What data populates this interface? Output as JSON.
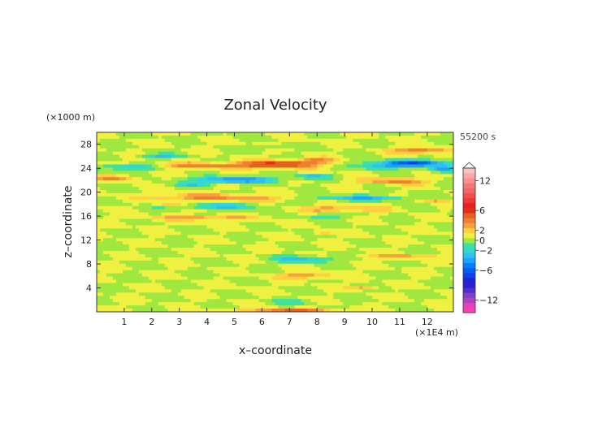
{
  "chart_data": {
    "type": "heatmap",
    "title": "Zonal Velocity",
    "xlabel": "x–coordinate",
    "ylabel": "z–coordinate",
    "x_unit": "(×1E4 m)",
    "y_unit": "(×1000 m)",
    "time_label": "55200 s",
    "xlim": [
      0,
      12.95
    ],
    "ylim": [
      0,
      30
    ],
    "x_ticks": [
      1,
      2,
      3,
      4,
      5,
      6,
      7,
      8,
      9,
      10,
      11,
      12
    ],
    "y_ticks": [
      4,
      8,
      12,
      16,
      20,
      24,
      28
    ],
    "background_value": 0.5,
    "colorbar": {
      "levels": [
        -14,
        -13,
        -12,
        -11,
        -10,
        -9,
        -8,
        -7,
        -6,
        -5,
        -4,
        -3,
        -2,
        -1,
        0,
        1,
        2,
        3,
        4,
        5,
        6,
        7,
        8,
        9,
        10,
        11,
        12,
        13,
        14
      ],
      "tick_labels": [
        "12",
        "6",
        "2",
        "0",
        "−2",
        "−6",
        "−12"
      ],
      "tick_values": [
        12,
        6,
        2,
        0,
        -2,
        -6,
        -12
      ],
      "colors": {
        "-14": "#ff3fb4",
        "-13": "#e840b8",
        "-12": "#b040c0",
        "-11": "#8040c8",
        "-10": "#5030c8",
        "-9": "#3020c8",
        "-8": "#2020d8",
        "-7": "#1040e8",
        "-6": "#0060f0",
        "-5": "#0080ff",
        "-4": "#20a0ff",
        "-3": "#30c0f0",
        "-2": "#30d8d8",
        "-1": "#40e0a0",
        "0": "#a0e840",
        "1": "#f0f040",
        "2": "#ffd040",
        "3": "#f8a040",
        "4": "#f08030",
        "5": "#e86020",
        "6": "#e03018",
        "7": "#e82020",
        "8": "#f03838",
        "9": "#f05050",
        "10": "#f06868",
        "11": "#f07878",
        "12": "#f89090",
        "13": "#f8a8a8",
        "14": "#fbc0c0"
      }
    },
    "anomalies": [
      {
        "x": 1.2,
        "z": 24.2,
        "sx": 1.1,
        "sz": 0.45,
        "v": -4.5
      },
      {
        "x": 2.3,
        "z": 26.0,
        "sx": 0.8,
        "sz": 0.35,
        "v": -3.2
      },
      {
        "x": 5.0,
        "z": 22.0,
        "sx": 1.5,
        "sz": 0.5,
        "v": -5.5
      },
      {
        "x": 7.8,
        "z": 22.6,
        "sx": 0.6,
        "sz": 0.35,
        "v": -4.0
      },
      {
        "x": 4.5,
        "z": 17.6,
        "sx": 1.6,
        "sz": 0.45,
        "v": -3.2
      },
      {
        "x": 9.6,
        "z": 19.0,
        "sx": 1.8,
        "sz": 0.45,
        "v": -3.5
      },
      {
        "x": 11.5,
        "z": 24.8,
        "sx": 1.5,
        "sz": 0.55,
        "v": -6.5
      },
      {
        "x": 12.6,
        "z": 23.8,
        "sx": 0.5,
        "sz": 0.5,
        "v": -4.5
      },
      {
        "x": 10.3,
        "z": 24.2,
        "sx": 0.8,
        "sz": 0.4,
        "v": -3.2
      },
      {
        "x": 7.5,
        "z": 8.8,
        "sx": 1.1,
        "sz": 0.55,
        "v": -3.5
      },
      {
        "x": 7.0,
        "z": 1.6,
        "sx": 1.0,
        "sz": 0.3,
        "v": -2.2
      },
      {
        "x": 3.5,
        "z": 21.2,
        "sx": 0.7,
        "sz": 0.3,
        "v": -2.2
      },
      {
        "x": 8.3,
        "z": 16.0,
        "sx": 0.8,
        "sz": 0.35,
        "v": -2.2
      },
      {
        "x": 6.1,
        "z": 27.4,
        "sx": 0.6,
        "sz": 0.3,
        "v": -2.0
      },
      {
        "x": 3.6,
        "z": 24.4,
        "sx": 2.4,
        "sz": 0.5,
        "v": 3.2
      },
      {
        "x": 6.6,
        "z": 24.7,
        "sx": 1.5,
        "sz": 0.6,
        "v": 5.2
      },
      {
        "x": 8.0,
        "z": 25.3,
        "sx": 0.7,
        "sz": 0.4,
        "v": 3.0
      },
      {
        "x": 0.7,
        "z": 22.3,
        "sx": 0.8,
        "sz": 0.45,
        "v": 3.0
      },
      {
        "x": 3.8,
        "z": 19.2,
        "sx": 1.8,
        "sz": 0.5,
        "v": 3.3
      },
      {
        "x": 11.8,
        "z": 27.0,
        "sx": 1.0,
        "sz": 0.5,
        "v": 4.0
      },
      {
        "x": 10.8,
        "z": 21.8,
        "sx": 1.3,
        "sz": 0.5,
        "v": 3.2
      },
      {
        "x": 8.8,
        "z": 17.2,
        "sx": 1.5,
        "sz": 0.45,
        "v": 3.0
      },
      {
        "x": 3.8,
        "z": 15.7,
        "sx": 1.7,
        "sz": 0.4,
        "v": 3.0
      },
      {
        "x": 7.5,
        "z": 6.0,
        "sx": 1.0,
        "sz": 0.45,
        "v": 3.1
      },
      {
        "x": 9.7,
        "z": 4.0,
        "sx": 0.5,
        "sz": 0.3,
        "v": 2.6
      },
      {
        "x": 11.0,
        "z": 9.3,
        "sx": 1.5,
        "sz": 0.35,
        "v": 2.4
      },
      {
        "x": 7.0,
        "z": 0.3,
        "sx": 1.6,
        "sz": 0.25,
        "v": 4.0
      },
      {
        "x": 6.0,
        "z": 18.8,
        "sx": 1.2,
        "sz": 0.35,
        "v": 2.6
      },
      {
        "x": 12.3,
        "z": 18.6,
        "sx": 0.5,
        "sz": 0.3,
        "v": 2.3
      },
      {
        "x": 8.2,
        "z": 13.3,
        "sx": 0.4,
        "sz": 0.3,
        "v": 2.6
      },
      {
        "x": 2.7,
        "z": 18.0,
        "sx": 0.5,
        "sz": 0.3,
        "v": 2.3
      }
    ]
  }
}
